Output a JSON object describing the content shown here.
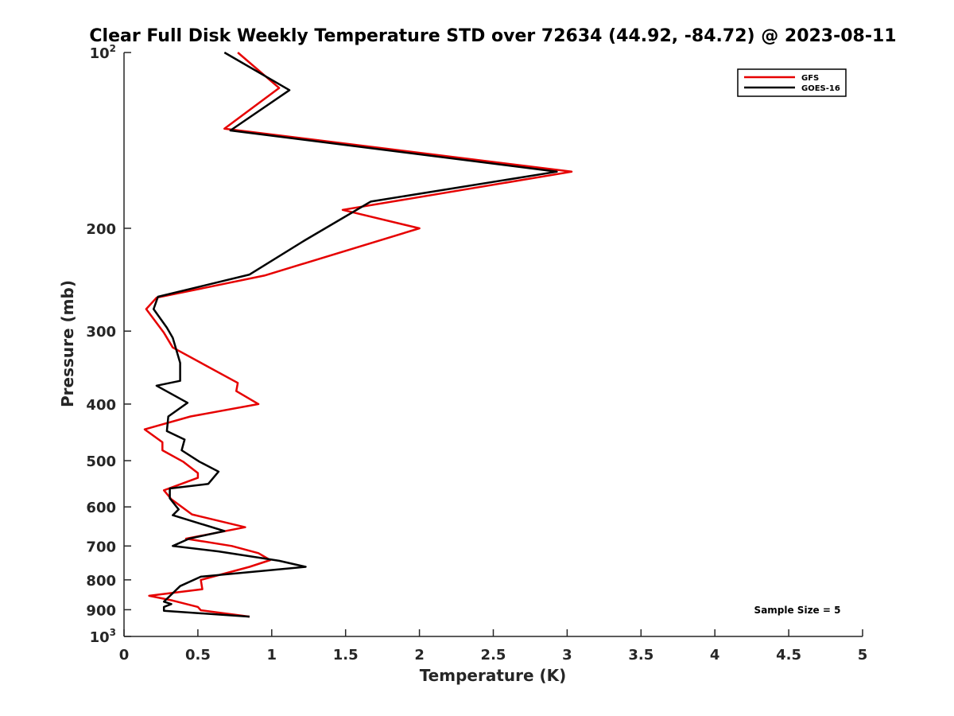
{
  "chart_data": {
    "type": "line",
    "title": "Clear Full Disk Weekly Temperature STD over 72634 (44.92, -84.72) @ 2023-08-11",
    "xlabel": "Temperature (K)",
    "ylabel": "Pressure (mb)",
    "xlim": [
      0,
      5
    ],
    "ylim": [
      100,
      1000
    ],
    "yscale": "log",
    "yreversed": true,
    "x_ticks": [
      {
        "value": 0,
        "label": "0"
      },
      {
        "value": 0.5,
        "label": "0.5"
      },
      {
        "value": 1,
        "label": "1"
      },
      {
        "value": 1.5,
        "label": "1.5"
      },
      {
        "value": 2,
        "label": "2"
      },
      {
        "value": 2.5,
        "label": "2.5"
      },
      {
        "value": 3,
        "label": "3"
      },
      {
        "value": 3.5,
        "label": "3.5"
      },
      {
        "value": 4,
        "label": "4"
      },
      {
        "value": 4.5,
        "label": "4.5"
      },
      {
        "value": 5,
        "label": "5"
      }
    ],
    "y_ticks": [
      {
        "value": 100,
        "label": "10",
        "sup": "2"
      },
      {
        "value": 200,
        "label": "200"
      },
      {
        "value": 300,
        "label": "300"
      },
      {
        "value": 400,
        "label": "400"
      },
      {
        "value": 500,
        "label": "500"
      },
      {
        "value": 600,
        "label": "600"
      },
      {
        "value": 700,
        "label": "700"
      },
      {
        "value": 800,
        "label": "800"
      },
      {
        "value": 900,
        "label": "900"
      },
      {
        "value": 1000,
        "label": "10",
        "sup": "3"
      }
    ],
    "legend_position": "top-right",
    "annotation": "Sample Size = 5",
    "series": [
      {
        "name": "GFS",
        "color": "#e60000",
        "points": [
          [
            0.77,
            100
          ],
          [
            1.05,
            115
          ],
          [
            0.68,
            135
          ],
          [
            3.03,
            160
          ],
          [
            1.48,
            186
          ],
          [
            2.0,
            200
          ],
          [
            0.95,
            241
          ],
          [
            0.22,
            263
          ],
          [
            0.15,
            275
          ],
          [
            0.27,
            302
          ],
          [
            0.33,
            320
          ],
          [
            0.77,
            368
          ],
          [
            0.76,
            380
          ],
          [
            0.91,
            400
          ],
          [
            0.45,
            420
          ],
          [
            0.14,
            442
          ],
          [
            0.26,
            465
          ],
          [
            0.26,
            480
          ],
          [
            0.4,
            502
          ],
          [
            0.5,
            525
          ],
          [
            0.5,
            535
          ],
          [
            0.27,
            562
          ],
          [
            0.32,
            582
          ],
          [
            0.46,
            618
          ],
          [
            0.82,
            650
          ],
          [
            0.42,
            680
          ],
          [
            0.73,
            700
          ],
          [
            0.91,
            720
          ],
          [
            0.99,
            740
          ],
          [
            0.85,
            760
          ],
          [
            0.52,
            800
          ],
          [
            0.53,
            830
          ],
          [
            0.17,
            852
          ],
          [
            0.33,
            868
          ],
          [
            0.5,
            890
          ],
          [
            0.52,
            902
          ],
          [
            0.85,
            925
          ]
        ]
      },
      {
        "name": "GOES-16",
        "color": "#000000",
        "points": [
          [
            0.68,
            100
          ],
          [
            1.12,
            116
          ],
          [
            0.72,
            136
          ],
          [
            2.93,
            160
          ],
          [
            1.67,
            180
          ],
          [
            1.22,
            210
          ],
          [
            0.85,
            240
          ],
          [
            0.23,
            262
          ],
          [
            0.2,
            275
          ],
          [
            0.29,
            296
          ],
          [
            0.33,
            308
          ],
          [
            0.38,
            340
          ],
          [
            0.38,
            365
          ],
          [
            0.22,
            372
          ],
          [
            0.43,
            398
          ],
          [
            0.3,
            420
          ],
          [
            0.29,
            445
          ],
          [
            0.41,
            460
          ],
          [
            0.39,
            480
          ],
          [
            0.51,
            502
          ],
          [
            0.64,
            522
          ],
          [
            0.57,
            548
          ],
          [
            0.31,
            558
          ],
          [
            0.31,
            580
          ],
          [
            0.37,
            606
          ],
          [
            0.33,
            620
          ],
          [
            0.68,
            660
          ],
          [
            0.44,
            680
          ],
          [
            0.33,
            700
          ],
          [
            0.64,
            715
          ],
          [
            1.05,
            742
          ],
          [
            1.23,
            760
          ],
          [
            0.52,
            790
          ],
          [
            0.38,
            820
          ],
          [
            0.32,
            848
          ],
          [
            0.27,
            872
          ],
          [
            0.32,
            880
          ],
          [
            0.27,
            890
          ],
          [
            0.27,
            904
          ],
          [
            0.85,
            925
          ]
        ]
      }
    ]
  }
}
